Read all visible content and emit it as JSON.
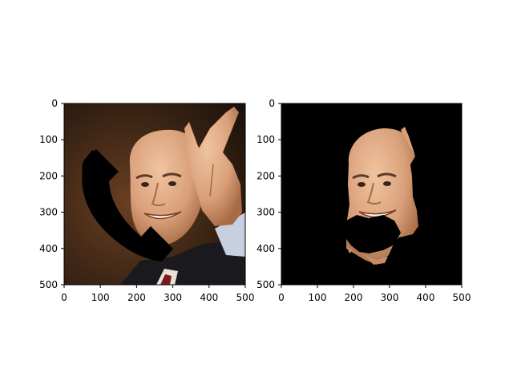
{
  "figure": {
    "panels": [
      {
        "image": "face-photo-with-phone-icon-occlusion",
        "x_ticks": [
          "0",
          "100",
          "200",
          "300",
          "400",
          "500"
        ],
        "y_ticks": [
          "0",
          "100",
          "200",
          "300",
          "400",
          "500"
        ],
        "xlim": [
          0,
          500
        ],
        "ylim": [
          500,
          0
        ]
      },
      {
        "image": "segmented-face-mask-on-black",
        "x_ticks": [
          "0",
          "100",
          "200",
          "300",
          "400",
          "500"
        ],
        "y_ticks": [
          "0",
          "100",
          "200",
          "300",
          "400",
          "500"
        ],
        "xlim": [
          0,
          500
        ],
        "ylim": [
          500,
          0
        ]
      }
    ],
    "colors": {
      "background": "#ffffff",
      "mask_background": "#000000",
      "skin": "#d6a07a",
      "photo_bg": "#2a1a10"
    }
  }
}
